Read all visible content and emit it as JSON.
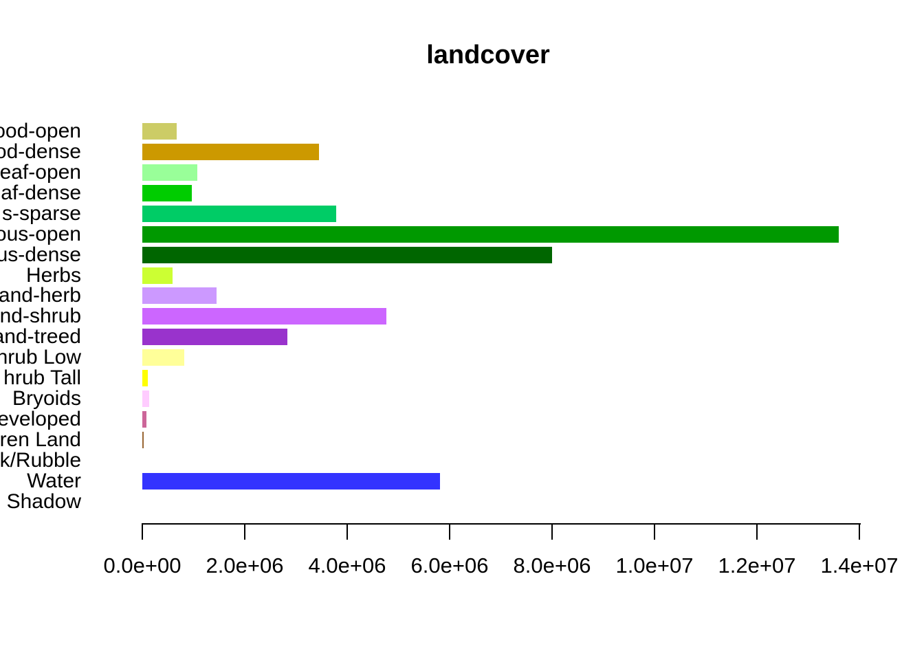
{
  "title": "landcover",
  "chart_data": {
    "type": "bar",
    "orientation": "horizontal",
    "title": "landcover",
    "categories": [
      "ood-open",
      "od-dense",
      "eaf-open",
      "af-dense",
      "s-sparse",
      "ous-open",
      "us-dense",
      "Herbs",
      "and-herb",
      "nd-shrub",
      "and-treed",
      "hrub Low",
      "hrub Tall",
      "Bryoids",
      "eveloped",
      "ren Land",
      "k/Rubble",
      "Water",
      "Shadow"
    ],
    "values": [
      670000,
      3450000,
      1080000,
      970000,
      3780000,
      13600000,
      8000000,
      590000,
      1450000,
      4760000,
      2830000,
      820000,
      110000,
      130000,
      80000,
      30000,
      0,
      5810000,
      0
    ],
    "colors": [
      "#cccc66",
      "#cc9900",
      "#99ff99",
      "#00cc00",
      "#00cc66",
      "#009900",
      "#006600",
      "#ccff33",
      "#cc99ff",
      "#cc66ff",
      "#9933cc",
      "#ffff99",
      "#ffff00",
      "#ffccff",
      "#cc6699",
      "#996633",
      "#cccccc",
      "#3333ff",
      "#000000"
    ],
    "xlim": [
      0,
      14000000
    ],
    "x_tick_values": [
      0,
      2000000,
      4000000,
      6000000,
      8000000,
      10000000,
      12000000,
      14000000
    ],
    "x_tick_labels": [
      "0.0e+00",
      "2.0e+06",
      "4.0e+06",
      "6.0e+06",
      "8.0e+06",
      "1.0e+07",
      "1.2e+07",
      "1.4e+07"
    ],
    "grid": false,
    "legend": "none"
  }
}
